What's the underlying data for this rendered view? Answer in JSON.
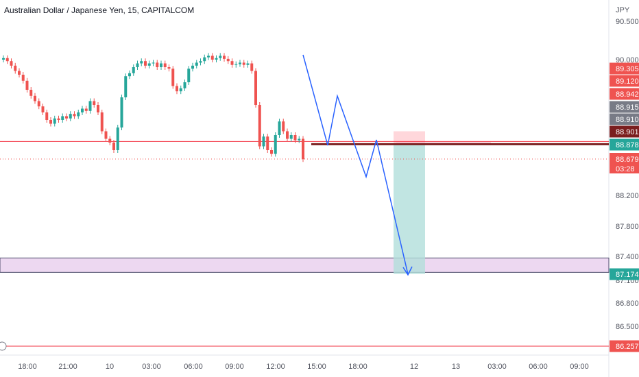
{
  "header": {
    "title": "Australian Dollar / Japanese Yen, 15, CAPITALCOM"
  },
  "axis": {
    "currency": "JPY"
  },
  "colors": {
    "up": "#26a69a",
    "down": "#ef5350",
    "resistance_line": "#f23645",
    "zone_line": "#7b1e1e",
    "path_line": "#2962ff",
    "purple_zone": "#e1bee7",
    "reward_zone": "#b2dfdb",
    "risk_zone": "#ffcdd2"
  },
  "chart_data": {
    "type": "candlestick",
    "title": "Australian Dollar / Japanese Yen, 15, CAPITALCOM",
    "ylabel": "JPY",
    "ylim": [
      86.2,
      90.6
    ],
    "y_ticks": [
      "90.500",
      "90.000",
      "88.200",
      "87.800",
      "87.400",
      "87.100",
      "86.800",
      "86.500"
    ],
    "x_ticks": [
      "18:00",
      "21:00",
      "10",
      "03:00",
      "06:00",
      "09:00",
      "12:00",
      "15:00",
      "18:00",
      "12",
      "13",
      "03:00",
      "06:00",
      "09:00"
    ],
    "price_tags": [
      {
        "label": "89.305",
        "value": 89.305,
        "color": "#ef5350"
      },
      {
        "label": "89.120",
        "value": 89.12,
        "color": "#ef5350"
      },
      {
        "label": "88.942",
        "value": 88.942,
        "color": "#ef5350"
      },
      {
        "label": "88.915",
        "value": 88.915,
        "color": "#787b86"
      },
      {
        "label": "88.910",
        "value": 88.91,
        "color": "#787b86"
      },
      {
        "label": "88.901",
        "value": 88.901,
        "color": "#7b1e1e"
      },
      {
        "label": "88.878",
        "value": 88.878,
        "color": "#26a69a"
      },
      {
        "label": "88.679",
        "value": 88.679,
        "color": "#ef5350",
        "sublabel": "03:28"
      },
      {
        "label": "87.174",
        "value": 87.174,
        "color": "#26a69a"
      },
      {
        "label": "86.257",
        "value": 86.257,
        "color": "#ef5350"
      }
    ],
    "horizontal_lines": [
      {
        "value": 88.915,
        "style": "resistance"
      },
      {
        "value": 88.7,
        "style": "dotted"
      },
      {
        "value": 86.257,
        "style": "resistance"
      }
    ],
    "zone": {
      "low": 87.2,
      "high": 87.38
    },
    "position": {
      "entry": 88.878,
      "stop": 89.05,
      "target": 87.18
    },
    "candles_open_close": [
      [
        90.0,
        90.02
      ],
      [
        90.02,
        89.98
      ],
      [
        89.98,
        89.92
      ],
      [
        89.92,
        89.85
      ],
      [
        89.85,
        89.8
      ],
      [
        89.8,
        89.72
      ],
      [
        89.72,
        89.6
      ],
      [
        89.6,
        89.52
      ],
      [
        89.52,
        89.45
      ],
      [
        89.45,
        89.38
      ],
      [
        89.38,
        89.3
      ],
      [
        89.3,
        89.2
      ],
      [
        89.2,
        89.15
      ],
      [
        89.15,
        89.22
      ],
      [
        89.22,
        89.2
      ],
      [
        89.2,
        89.25
      ],
      [
        89.25,
        89.22
      ],
      [
        89.22,
        89.28
      ],
      [
        89.28,
        89.25
      ],
      [
        89.25,
        89.3
      ],
      [
        89.3,
        89.35
      ],
      [
        89.35,
        89.32
      ],
      [
        89.32,
        89.45
      ],
      [
        89.45,
        89.4
      ],
      [
        89.4,
        89.3
      ],
      [
        89.3,
        89.05
      ],
      [
        89.05,
        88.95
      ],
      [
        88.95,
        88.9
      ],
      [
        88.9,
        88.8
      ],
      [
        88.8,
        89.1
      ],
      [
        89.1,
        89.5
      ],
      [
        89.5,
        89.78
      ],
      [
        89.78,
        89.82
      ],
      [
        89.82,
        89.9
      ],
      [
        89.9,
        89.95
      ],
      [
        89.95,
        89.98
      ],
      [
        89.98,
        89.92
      ],
      [
        89.92,
        89.95
      ],
      [
        89.95,
        89.96
      ],
      [
        89.96,
        89.9
      ],
      [
        89.9,
        89.95
      ],
      [
        89.95,
        89.9
      ],
      [
        89.9,
        89.88
      ],
      [
        89.88,
        89.65
      ],
      [
        89.65,
        89.58
      ],
      [
        89.58,
        89.62
      ],
      [
        89.62,
        89.7
      ],
      [
        89.7,
        89.88
      ],
      [
        89.88,
        89.92
      ],
      [
        89.92,
        89.96
      ],
      [
        89.96,
        89.98
      ],
      [
        89.98,
        90.03
      ],
      [
        90.03,
        90.05
      ],
      [
        90.05,
        90.0
      ],
      [
        90.0,
        90.02
      ],
      [
        90.02,
        90.05
      ],
      [
        90.05,
        90.01
      ],
      [
        90.01,
        89.98
      ],
      [
        89.98,
        89.93
      ],
      [
        89.93,
        89.94
      ],
      [
        89.94,
        89.96
      ],
      [
        89.96,
        89.93
      ],
      [
        89.93,
        89.95
      ],
      [
        89.95,
        89.85
      ],
      [
        89.85,
        89.4
      ],
      [
        89.4,
        88.85
      ],
      [
        88.85,
        88.98
      ],
      [
        88.98,
        88.8
      ],
      [
        88.8,
        88.75
      ],
      [
        88.75,
        89.0
      ],
      [
        89.0,
        89.18
      ],
      [
        89.18,
        89.05
      ],
      [
        89.05,
        88.95
      ],
      [
        88.95,
        89.0
      ],
      [
        89.0,
        88.93
      ],
      [
        88.93,
        88.95
      ],
      [
        88.95,
        88.68
      ]
    ]
  }
}
